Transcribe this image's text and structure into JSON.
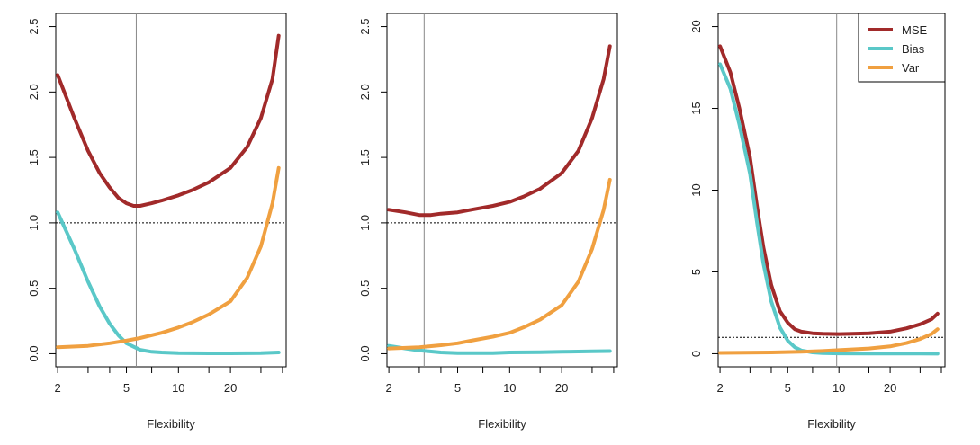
{
  "chart_data": [
    {
      "type": "line",
      "xlabel": "Flexibility",
      "ylabel": "",
      "xscale": "log",
      "xlim": [
        2,
        40
      ],
      "ylim": [
        0,
        2.5
      ],
      "xticks": [
        2,
        5,
        10,
        20
      ],
      "yticks": [
        0.0,
        0.5,
        1.0,
        1.5,
        2.0,
        2.5
      ],
      "ytick_labels": [
        "0.0",
        "0.5",
        "1.0",
        "1.5",
        "2.0",
        "2.5"
      ],
      "hline": 1.0,
      "vline": 5.7,
      "series": [
        {
          "name": "MSE",
          "color": "#a12a2a",
          "x": [
            2,
            2.5,
            3,
            3.5,
            4,
            4.5,
            5,
            5.5,
            6,
            7,
            8,
            10,
            12,
            15,
            20,
            25,
            30,
            35,
            38
          ],
          "y": [
            2.13,
            1.8,
            1.55,
            1.38,
            1.27,
            1.19,
            1.15,
            1.13,
            1.13,
            1.15,
            1.17,
            1.21,
            1.25,
            1.31,
            1.42,
            1.58,
            1.8,
            2.1,
            2.43
          ]
        },
        {
          "name": "Bias",
          "color": "#5ac8c8",
          "x": [
            2,
            2.5,
            3,
            3.5,
            4,
            4.5,
            5,
            6,
            7,
            8,
            10,
            15,
            20,
            30,
            38
          ],
          "y": [
            1.08,
            0.8,
            0.55,
            0.36,
            0.23,
            0.14,
            0.08,
            0.03,
            0.015,
            0.01,
            0.005,
            0.003,
            0.003,
            0.005,
            0.01
          ]
        },
        {
          "name": "Var",
          "color": "#f0a040",
          "x": [
            2,
            3,
            4,
            5,
            6,
            8,
            10,
            12,
            15,
            20,
            25,
            30,
            35,
            38
          ],
          "y": [
            0.05,
            0.06,
            0.08,
            0.1,
            0.12,
            0.16,
            0.2,
            0.24,
            0.3,
            0.4,
            0.58,
            0.82,
            1.15,
            1.42
          ]
        }
      ]
    },
    {
      "type": "line",
      "xlabel": "Flexibility",
      "ylabel": "",
      "xscale": "log",
      "xlim": [
        2,
        40
      ],
      "ylim": [
        0,
        2.5
      ],
      "xticks": [
        2,
        5,
        10,
        20
      ],
      "yticks": [
        0.0,
        0.5,
        1.0,
        1.5,
        2.0,
        2.5
      ],
      "ytick_labels": [
        "0.0",
        "0.5",
        "1.0",
        "1.5",
        "2.0",
        "2.5"
      ],
      "hline": 1.0,
      "vline": 3.2,
      "series": [
        {
          "name": "MSE",
          "color": "#a12a2a",
          "x": [
            2,
            2.5,
            3,
            3.5,
            4,
            5,
            6,
            8,
            10,
            12,
            15,
            20,
            25,
            30,
            35,
            38
          ],
          "y": [
            1.1,
            1.08,
            1.06,
            1.06,
            1.07,
            1.08,
            1.1,
            1.13,
            1.16,
            1.2,
            1.26,
            1.38,
            1.55,
            1.8,
            2.1,
            2.35
          ]
        },
        {
          "name": "Bias",
          "color": "#5ac8c8",
          "x": [
            2,
            2.5,
            3,
            4,
            5,
            8,
            10,
            15,
            20,
            30,
            38
          ],
          "y": [
            0.06,
            0.04,
            0.025,
            0.01,
            0.005,
            0.005,
            0.01,
            0.012,
            0.015,
            0.018,
            0.02
          ]
        },
        {
          "name": "Var",
          "color": "#f0a040",
          "x": [
            2,
            3,
            4,
            5,
            6,
            8,
            10,
            12,
            15,
            20,
            25,
            30,
            35,
            38
          ],
          "y": [
            0.04,
            0.05,
            0.065,
            0.08,
            0.1,
            0.13,
            0.16,
            0.2,
            0.26,
            0.37,
            0.55,
            0.8,
            1.1,
            1.33
          ]
        }
      ]
    },
    {
      "type": "line",
      "xlabel": "Flexibility",
      "ylabel": "",
      "xscale": "log",
      "xlim": [
        2,
        40
      ],
      "ylim": [
        0,
        20
      ],
      "xticks": [
        2,
        5,
        10,
        20
      ],
      "yticks": [
        0,
        5,
        10,
        15,
        20
      ],
      "ytick_labels": [
        "0",
        "5",
        "10",
        "15",
        "20"
      ],
      "hline": 1.0,
      "vline": 9.7,
      "legend": {
        "position": "top-right",
        "entries": [
          "MSE",
          "Bias",
          "Var"
        ]
      },
      "series": [
        {
          "name": "MSE",
          "color": "#a12a2a",
          "x": [
            2,
            2.3,
            2.6,
            3,
            3.3,
            3.6,
            4,
            4.5,
            5,
            5.5,
            6,
            7,
            8,
            10,
            12,
            15,
            20,
            25,
            30,
            35,
            38
          ],
          "y": [
            18.8,
            17.2,
            15.0,
            12.0,
            9.0,
            6.5,
            4.2,
            2.6,
            1.9,
            1.5,
            1.35,
            1.25,
            1.22,
            1.2,
            1.22,
            1.25,
            1.35,
            1.55,
            1.8,
            2.1,
            2.45
          ]
        },
        {
          "name": "Bias",
          "color": "#5ac8c8",
          "x": [
            2,
            2.3,
            2.6,
            3,
            3.3,
            3.6,
            4,
            4.5,
            5,
            5.5,
            6,
            7,
            8,
            10,
            15,
            20,
            30,
            38
          ],
          "y": [
            17.7,
            16.2,
            14.0,
            11.0,
            8.0,
            5.5,
            3.2,
            1.6,
            0.8,
            0.4,
            0.2,
            0.08,
            0.04,
            0.02,
            0.01,
            0.01,
            0.01,
            0.0
          ]
        },
        {
          "name": "Var",
          "color": "#f0a040",
          "x": [
            2,
            4,
            6,
            8,
            10,
            15,
            20,
            25,
            30,
            35,
            38
          ],
          "y": [
            0.05,
            0.08,
            0.12,
            0.17,
            0.22,
            0.32,
            0.45,
            0.65,
            0.9,
            1.2,
            1.5
          ]
        }
      ]
    }
  ]
}
